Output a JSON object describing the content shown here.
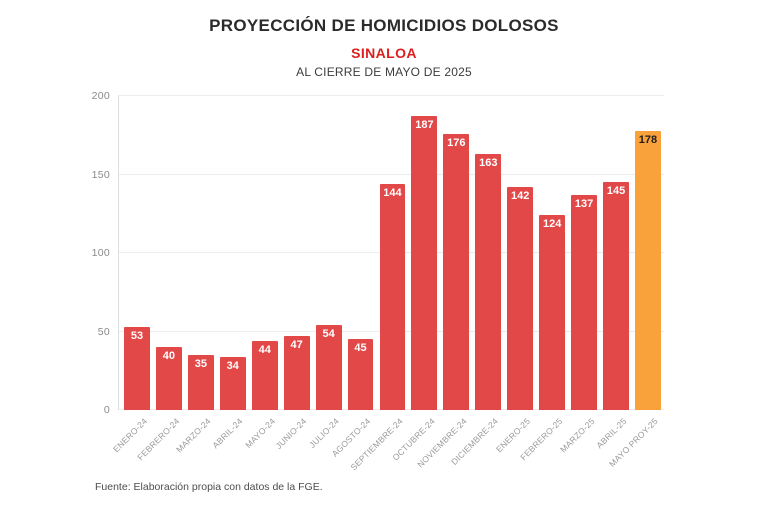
{
  "header": {
    "title": "PROYECCIÓN DE HOMICIDIOS DOLOSOS",
    "subtitle": "SINALOA",
    "period": "AL CIERRE DE MAYO DE 2025"
  },
  "footer": {
    "source": "Fuente: Elaboración propia con datos de la FGE."
  },
  "chart_data": {
    "type": "bar",
    "title": "PROYECCIÓN DE HOMICIDIOS DOLOSOS",
    "subtitle": "SINALOA",
    "period_label": "AL CIERRE DE MAYO DE 2025",
    "categories": [
      "ENERO-24",
      "FEBRERO-24",
      "MARZO-24",
      "ABRIL-24",
      "MAYO-24",
      "JUNIO-24",
      "JULIO-24",
      "AGOSTO-24",
      "SEPTIEMBRE-24",
      "OCTUBRE-24",
      "NOVIEMBRE-24",
      "DICIEMBRE-24",
      "ENERO-25",
      "FEBRERO-25",
      "MARZO-25",
      "ABRIL-25",
      "MAYO PROY-25"
    ],
    "values": [
      53,
      40,
      35,
      34,
      44,
      47,
      54,
      45,
      144,
      187,
      176,
      163,
      142,
      124,
      137,
      145,
      178
    ],
    "xlabel": "",
    "ylabel": "",
    "ylim": [
      0,
      200
    ],
    "yticks": [
      0,
      50,
      100,
      150,
      200
    ],
    "grid": true,
    "legend": false,
    "bar_color": "#e24848",
    "highlight_color": "#f9a13a",
    "highlight_index": 16,
    "value_label_color": "#ffffff",
    "highlight_value_label_color": "#1e1e1e",
    "source": "Fuente: Elaboración propia con datos de la FGE."
  }
}
